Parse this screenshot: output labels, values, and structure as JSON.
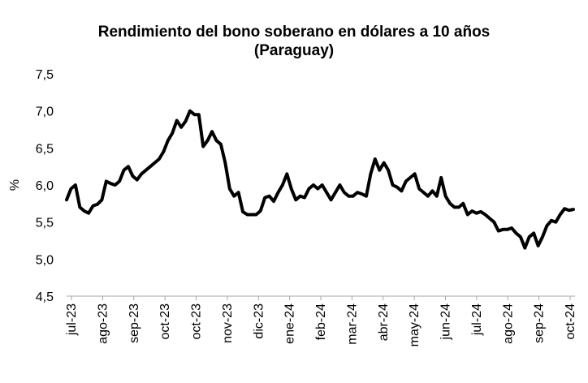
{
  "chart_data": {
    "type": "line",
    "title": "Rendimiento del bono soberano en dólares a 10 años",
    "subtitle": "(Paraguay)",
    "xlabel": "",
    "ylabel": "%",
    "ylim": [
      4.5,
      7.5
    ],
    "yticks": [
      "4,5",
      "5,0",
      "5,5",
      "6,0",
      "6,5",
      "7,0",
      "7,5"
    ],
    "yticks_values": [
      4.5,
      5.0,
      5.5,
      6.0,
      6.5,
      7.0,
      7.5
    ],
    "xticks": [
      "jul-23",
      "ago-23",
      "sep-23",
      "oct-23",
      "oct-23",
      "nov-23",
      "dic-23",
      "ene-24",
      "feb-24",
      "mar-24",
      "abr-24",
      "may-24",
      "jun-24",
      "jul-24",
      "ago-24",
      "sep-24",
      "oct-24"
    ],
    "grid": false,
    "legend": "none",
    "color": "#000000",
    "series": [
      {
        "values": [
          5.8,
          5.95,
          6.0,
          5.7,
          5.65,
          5.62,
          5.72,
          5.74,
          5.8,
          6.05,
          6.02,
          6.0,
          6.05,
          6.2,
          6.25,
          6.12,
          6.07,
          6.15,
          6.2,
          6.25,
          6.3,
          6.35,
          6.45,
          6.6,
          6.7,
          6.87,
          6.78,
          6.86,
          7.0,
          6.95,
          6.95,
          6.52,
          6.6,
          6.72,
          6.6,
          6.55,
          6.3,
          5.95,
          5.85,
          5.9,
          5.64,
          5.6,
          5.6,
          5.6,
          5.65,
          5.83,
          5.85,
          5.78,
          5.9,
          6.0,
          6.15,
          5.95,
          5.8,
          5.85,
          5.83,
          5.95,
          6.0,
          5.95,
          6.0,
          5.9,
          5.8,
          5.9,
          6.0,
          5.9,
          5.85,
          5.85,
          5.9,
          5.88,
          5.85,
          6.15,
          6.35,
          6.2,
          6.3,
          6.2,
          6.0,
          5.97,
          5.92,
          6.05,
          6.1,
          6.15,
          5.95,
          5.9,
          5.85,
          5.92,
          5.85,
          6.1,
          5.85,
          5.75,
          5.7,
          5.7,
          5.75,
          5.6,
          5.65,
          5.62,
          5.64,
          5.6,
          5.55,
          5.5,
          5.38,
          5.4,
          5.4,
          5.42,
          5.35,
          5.3,
          5.15,
          5.3,
          5.35,
          5.18,
          5.3,
          5.45,
          5.52,
          5.5,
          5.6,
          5.68,
          5.66,
          5.67
        ]
      }
    ]
  }
}
